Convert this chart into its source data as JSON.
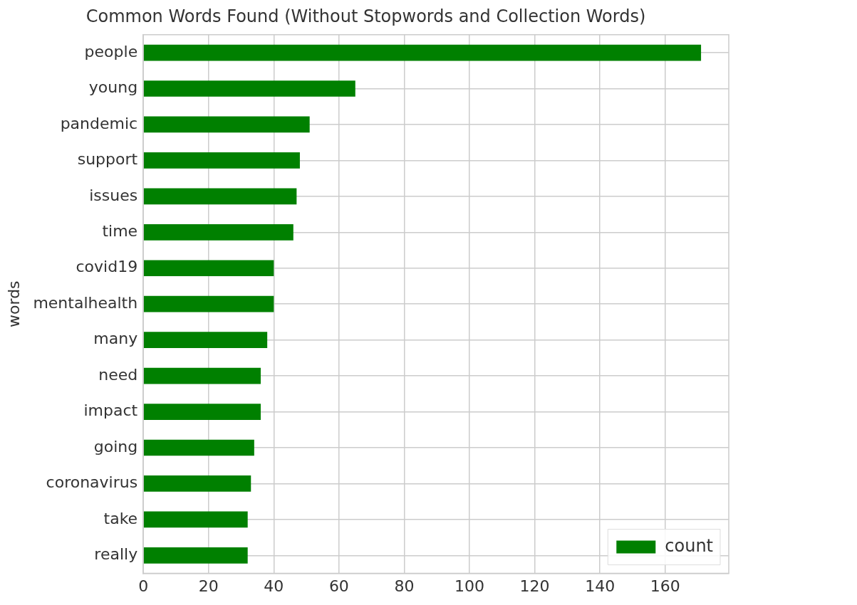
{
  "chart_data": {
    "type": "bar",
    "orientation": "horizontal",
    "title": "Common Words Found (Without Stopwords and Collection Words)",
    "ylabel": "words",
    "categories": [
      "people",
      "young",
      "pandemic",
      "support",
      "issues",
      "time",
      "covid19",
      "mentalhealth",
      "many",
      "need",
      "impact",
      "going",
      "coronavirus",
      "take",
      "really"
    ],
    "series": [
      {
        "name": "count",
        "color": "#008000",
        "values": [
          171,
          65,
          51,
          48,
          47,
          46,
          40,
          40,
          38,
          36,
          36,
          34,
          33,
          32,
          32
        ]
      }
    ],
    "xlim": [
      0,
      179.5
    ],
    "xticks": [
      0,
      20,
      40,
      60,
      80,
      100,
      120,
      140,
      160
    ],
    "grid": true,
    "legend": "bottom right"
  }
}
